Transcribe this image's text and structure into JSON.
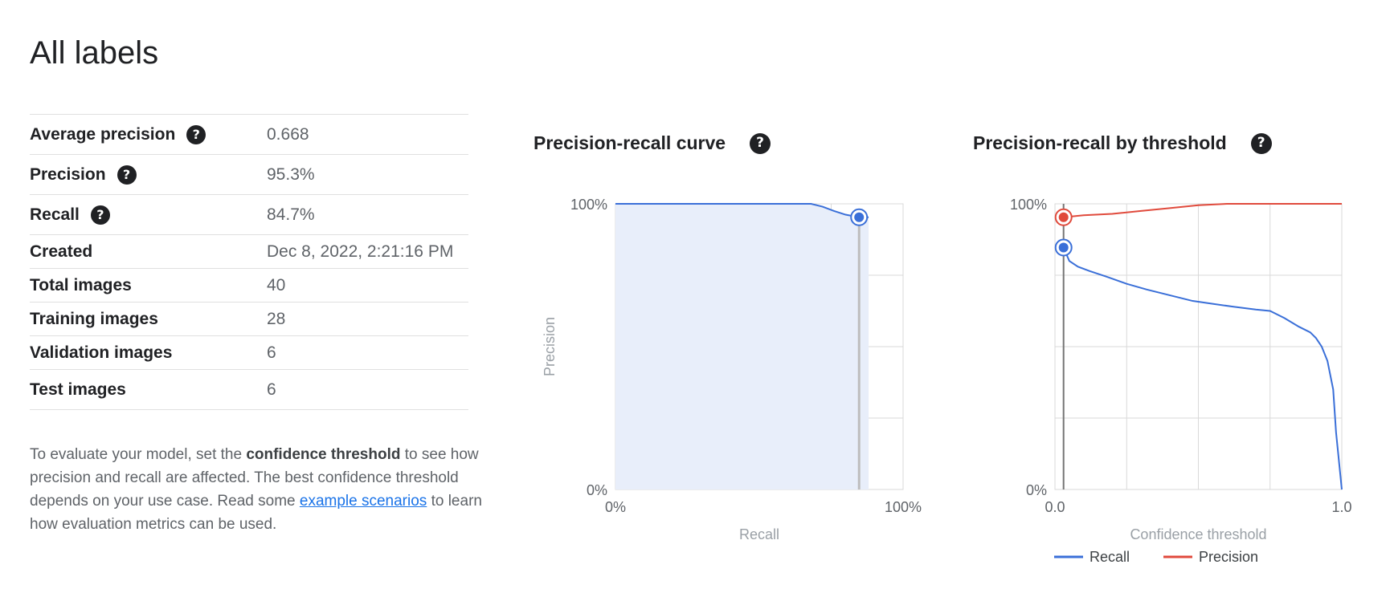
{
  "page": {
    "title": "All labels"
  },
  "metrics": [
    {
      "label": "Average precision",
      "value": "0.668",
      "help": true
    },
    {
      "label": "Precision",
      "value": "95.3%",
      "help": true
    },
    {
      "label": "Recall",
      "value": "84.7%",
      "help": true
    },
    {
      "label": "Created",
      "value": "Dec 8, 2022, 2:21:16 PM",
      "help": false
    },
    {
      "label": "Total images",
      "value": "40",
      "help": false
    },
    {
      "label": "Training images",
      "value": "28",
      "help": false
    },
    {
      "label": "Validation images",
      "value": "6",
      "help": false
    },
    {
      "label": "Test images",
      "value": "6",
      "help": false
    }
  ],
  "note": {
    "part1": "To evaluate your model, set the ",
    "bold": "confidence threshold",
    "part2": " to see how precision and recall are affected. The best confidence threshold depends on your use case. Read some ",
    "link": "example scenarios",
    "part3": " to learn how evaluation metrics can be used."
  },
  "icons": {
    "help": "question-circle-icon"
  },
  "colors": {
    "recall": "#3a6fd8",
    "precision": "#e04a3c",
    "fill": "#e8eefa",
    "grid": "#d9d9d9"
  },
  "chart_data": [
    {
      "type": "area",
      "title": "Precision-recall curve",
      "xlabel": "Recall",
      "ylabel": "Precision",
      "xlim": [
        0,
        1
      ],
      "ylim": [
        0,
        1
      ],
      "x_ticks": [
        "0%",
        "100%"
      ],
      "y_ticks": [
        "0%",
        "100%"
      ],
      "series": [
        {
          "x": [
            0,
            0.1,
            0.2,
            0.3,
            0.4,
            0.5,
            0.6,
            0.68,
            0.72,
            0.76,
            0.8,
            0.847,
            0.88
          ],
          "y": [
            1,
            1,
            1,
            1,
            1,
            1,
            1,
            1,
            0.99,
            0.975,
            0.962,
            0.953,
            0.953
          ]
        }
      ],
      "marker": {
        "x": 0.847,
        "y": 0.953
      },
      "grid": true
    },
    {
      "type": "line",
      "title": "Precision-recall by threshold",
      "xlabel": "Confidence threshold",
      "xlim": [
        0,
        1
      ],
      "ylim": [
        0,
        1
      ],
      "x_ticks": [
        "0.0",
        "1.0"
      ],
      "y_ticks": [
        "0%",
        "100%"
      ],
      "legend_position": "bottom",
      "series": [
        {
          "name": "Recall",
          "x": [
            0.03,
            0.05,
            0.08,
            0.12,
            0.18,
            0.25,
            0.32,
            0.4,
            0.48,
            0.55,
            0.62,
            0.7,
            0.75,
            0.8,
            0.85,
            0.89,
            0.91,
            0.93,
            0.95,
            0.97,
            0.98,
            0.99,
            1.0
          ],
          "y": [
            0.847,
            0.8,
            0.78,
            0.765,
            0.745,
            0.72,
            0.7,
            0.68,
            0.66,
            0.65,
            0.64,
            0.63,
            0.625,
            0.6,
            0.57,
            0.55,
            0.53,
            0.5,
            0.45,
            0.35,
            0.2,
            0.1,
            0.0
          ]
        },
        {
          "name": "Precision",
          "x": [
            0.03,
            0.1,
            0.2,
            0.3,
            0.4,
            0.5,
            0.6,
            0.7,
            0.8,
            0.9,
            1.0
          ],
          "y": [
            0.953,
            0.96,
            0.965,
            0.975,
            0.985,
            0.995,
            1,
            1,
            1,
            1,
            1
          ]
        }
      ],
      "markers": [
        {
          "series": "Precision",
          "x": 0.03,
          "y": 0.953
        },
        {
          "series": "Recall",
          "x": 0.03,
          "y": 0.847
        }
      ],
      "threshold": 0.03,
      "grid": true
    }
  ]
}
